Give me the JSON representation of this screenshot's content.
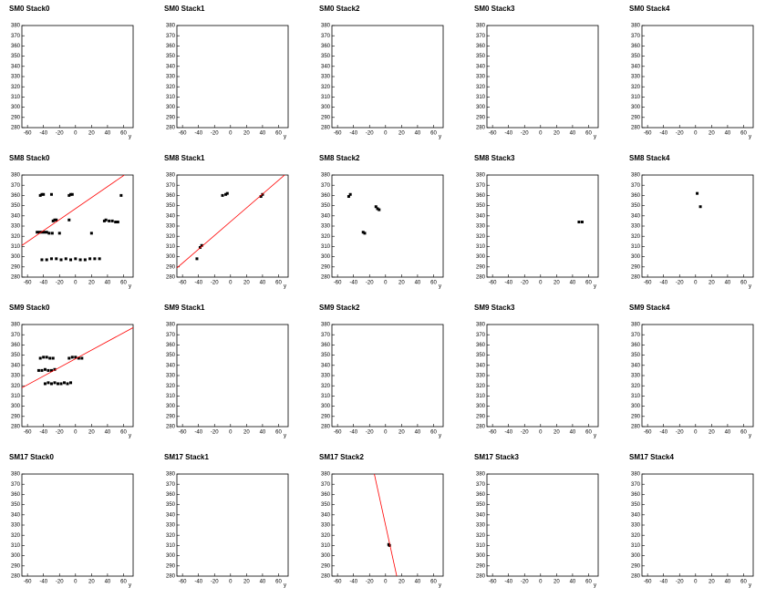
{
  "chart_data": [
    {
      "type": "scatter",
      "title": "SM0 Stack0",
      "xlabel": "y",
      "x": [],
      "y": [],
      "color": "#000000",
      "xlim": [
        -67,
        72
      ],
      "ylim": [
        280,
        380
      ],
      "xticks": [
        -60,
        -40,
        -20,
        0,
        20,
        40,
        60
      ],
      "yticks": [
        280,
        290,
        300,
        310,
        320,
        330,
        340,
        350,
        360,
        370,
        380
      ]
    },
    {
      "type": "scatter",
      "title": "SM0 Stack1",
      "xlabel": "y",
      "x": [],
      "y": [],
      "color": "#000000",
      "xlim": [
        -67,
        72
      ],
      "ylim": [
        280,
        380
      ],
      "xticks": [
        -60,
        -40,
        -20,
        0,
        20,
        40,
        60
      ],
      "yticks": [
        280,
        290,
        300,
        310,
        320,
        330,
        340,
        350,
        360,
        370,
        380
      ]
    },
    {
      "type": "scatter",
      "title": "SM0 Stack2",
      "xlabel": "y",
      "x": [],
      "y": [],
      "color": "#000000",
      "xlim": [
        -67,
        72
      ],
      "ylim": [
        280,
        380
      ],
      "xticks": [
        -60,
        -40,
        -20,
        0,
        20,
        40,
        60
      ],
      "yticks": [
        280,
        290,
        300,
        310,
        320,
        330,
        340,
        350,
        360,
        370,
        380
      ]
    },
    {
      "type": "scatter",
      "title": "SM0 Stack3",
      "xlabel": "y",
      "x": [],
      "y": [],
      "color": "#000000",
      "xlim": [
        -67,
        72
      ],
      "ylim": [
        280,
        380
      ],
      "xticks": [
        -60,
        -40,
        -20,
        0,
        20,
        40,
        60
      ],
      "yticks": [
        280,
        290,
        300,
        310,
        320,
        330,
        340,
        350,
        360,
        370,
        380
      ]
    },
    {
      "type": "scatter",
      "title": "SM0 Stack4",
      "xlabel": "y",
      "x": [],
      "y": [],
      "color": "#000000",
      "xlim": [
        -67,
        72
      ],
      "ylim": [
        280,
        380
      ],
      "xticks": [
        -60,
        -40,
        -20,
        0,
        20,
        40,
        60
      ],
      "yticks": [
        280,
        290,
        300,
        310,
        320,
        330,
        340,
        350,
        360,
        370,
        380
      ]
    },
    {
      "type": "scatter",
      "title": "SM8 Stack0",
      "xlabel": "y",
      "x": [
        -44,
        -42,
        -40,
        -30,
        -8,
        -6,
        -4,
        57,
        -28,
        -26,
        -24,
        -8,
        36,
        38,
        42,
        46,
        50,
        53,
        -48,
        -45,
        -42,
        -39,
        -36,
        -33,
        -29,
        -20,
        20,
        -42,
        -36,
        -30,
        -24,
        -18,
        -12,
        -6,
        0,
        6,
        12,
        18,
        24,
        30
      ],
      "y": [
        360,
        361,
        361,
        361,
        360,
        361,
        361,
        360,
        335,
        336,
        336,
        336,
        335,
        336,
        335,
        335,
        334,
        334,
        324,
        324,
        324,
        324,
        324,
        323,
        323,
        323,
        323,
        297,
        297,
        298,
        298,
        297,
        298,
        297,
        298,
        297,
        297,
        298,
        298,
        298
      ],
      "color": "#000000",
      "fit": {
        "x": [
          -67,
          61
        ],
        "y": [
          311,
          380
        ],
        "color": "#ff0000"
      },
      "xlim": [
        -67,
        72
      ],
      "ylim": [
        280,
        380
      ],
      "xticks": [
        -60,
        -40,
        -20,
        0,
        20,
        40,
        60
      ],
      "yticks": [
        280,
        290,
        300,
        310,
        320,
        330,
        340,
        350,
        360,
        370,
        380
      ]
    },
    {
      "type": "scatter",
      "title": "SM8 Stack1",
      "xlabel": "y",
      "x": [
        -42,
        -38,
        -36,
        -10,
        -6,
        -4,
        38,
        40
      ],
      "y": [
        298,
        309,
        311,
        360,
        361,
        362,
        359,
        361
      ],
      "color": "#000000",
      "fit": {
        "x": [
          -67,
          72
        ],
        "y": [
          289,
          383
        ],
        "color": "#ff0000"
      },
      "xlim": [
        -67,
        72
      ],
      "ylim": [
        280,
        380
      ],
      "xticks": [
        -60,
        -40,
        -20,
        0,
        20,
        40,
        60
      ],
      "yticks": [
        280,
        290,
        300,
        310,
        320,
        330,
        340,
        350,
        360,
        370,
        380
      ]
    },
    {
      "type": "scatter",
      "title": "SM8 Stack2",
      "xlabel": "y",
      "x": [
        -46,
        -44,
        -12,
        -10,
        -8,
        -28,
        -26
      ],
      "y": [
        359,
        361,
        349,
        347,
        346,
        324,
        323
      ],
      "color": "#000000",
      "xlim": [
        -67,
        72
      ],
      "ylim": [
        280,
        380
      ],
      "xticks": [
        -60,
        -40,
        -20,
        0,
        20,
        40,
        60
      ],
      "yticks": [
        280,
        290,
        300,
        310,
        320,
        330,
        340,
        350,
        360,
        370,
        380
      ]
    },
    {
      "type": "scatter",
      "title": "SM8 Stack3",
      "xlabel": "y",
      "x": [
        48,
        52
      ],
      "y": [
        334,
        334
      ],
      "color": "#000000",
      "xlim": [
        -67,
        72
      ],
      "ylim": [
        280,
        380
      ],
      "xticks": [
        -60,
        -40,
        -20,
        0,
        20,
        40,
        60
      ],
      "yticks": [
        280,
        290,
        300,
        310,
        320,
        330,
        340,
        350,
        360,
        370,
        380
      ]
    },
    {
      "type": "scatter",
      "title": "SM8 Stack4",
      "xlabel": "y",
      "x": [
        2,
        6
      ],
      "y": [
        362,
        349
      ],
      "color": "#000000",
      "xlim": [
        -67,
        72
      ],
      "ylim": [
        280,
        380
      ],
      "xticks": [
        -60,
        -40,
        -20,
        0,
        20,
        40,
        60
      ],
      "yticks": [
        280,
        290,
        300,
        310,
        320,
        330,
        340,
        350,
        360,
        370,
        380
      ]
    },
    {
      "type": "scatter",
      "title": "SM9 Stack0",
      "xlabel": "y",
      "x": [
        -44,
        -40,
        -36,
        -32,
        -28,
        -8,
        -4,
        0,
        4,
        8,
        -46,
        -42,
        -38,
        -34,
        -30,
        -26,
        -38,
        -34,
        -30,
        -26,
        -22,
        -18,
        -14,
        -10,
        -6
      ],
      "y": [
        347,
        348,
        348,
        347,
        347,
        347,
        348,
        348,
        347,
        347,
        335,
        335,
        336,
        335,
        335,
        336,
        322,
        323,
        322,
        323,
        322,
        322,
        323,
        322,
        323
      ],
      "color": "#000000",
      "fit": {
        "x": [
          -67,
          72
        ],
        "y": [
          318,
          377
        ],
        "color": "#ff0000"
      },
      "xlim": [
        -67,
        72
      ],
      "ylim": [
        280,
        380
      ],
      "xticks": [
        -60,
        -40,
        -20,
        0,
        20,
        40,
        60
      ],
      "yticks": [
        280,
        290,
        300,
        310,
        320,
        330,
        340,
        350,
        360,
        370,
        380
      ]
    },
    {
      "type": "scatter",
      "title": "SM9 Stack1",
      "xlabel": "y",
      "x": [],
      "y": [],
      "color": "#000000",
      "xlim": [
        -67,
        72
      ],
      "ylim": [
        280,
        380
      ],
      "xticks": [
        -60,
        -40,
        -20,
        0,
        20,
        40,
        60
      ],
      "yticks": [
        280,
        290,
        300,
        310,
        320,
        330,
        340,
        350,
        360,
        370,
        380
      ]
    },
    {
      "type": "scatter",
      "title": "SM9 Stack2",
      "xlabel": "y",
      "x": [],
      "y": [],
      "color": "#000000",
      "xlim": [
        -67,
        72
      ],
      "ylim": [
        280,
        380
      ],
      "xticks": [
        -60,
        -40,
        -20,
        0,
        20,
        40,
        60
      ],
      "yticks": [
        280,
        290,
        300,
        310,
        320,
        330,
        340,
        350,
        360,
        370,
        380
      ]
    },
    {
      "type": "scatter",
      "title": "SM9 Stack3",
      "xlabel": "y",
      "x": [],
      "y": [],
      "color": "#000000",
      "xlim": [
        -67,
        72
      ],
      "ylim": [
        280,
        380
      ],
      "xticks": [
        -60,
        -40,
        -20,
        0,
        20,
        40,
        60
      ],
      "yticks": [
        280,
        290,
        300,
        310,
        320,
        330,
        340,
        350,
        360,
        370,
        380
      ]
    },
    {
      "type": "scatter",
      "title": "SM9 Stack4",
      "xlabel": "y",
      "x": [],
      "y": [],
      "color": "#000000",
      "xlim": [
        -67,
        72
      ],
      "ylim": [
        280,
        380
      ],
      "xticks": [
        -60,
        -40,
        -20,
        0,
        20,
        40,
        60
      ],
      "yticks": [
        280,
        290,
        300,
        310,
        320,
        330,
        340,
        350,
        360,
        370,
        380
      ]
    },
    {
      "type": "scatter",
      "title": "SM17 Stack0",
      "xlabel": "y",
      "x": [],
      "y": [],
      "color": "#000000",
      "xlim": [
        -67,
        72
      ],
      "ylim": [
        280,
        380
      ],
      "xticks": [
        -60,
        -40,
        -20,
        0,
        20,
        40,
        60
      ],
      "yticks": [
        280,
        290,
        300,
        310,
        320,
        330,
        340,
        350,
        360,
        370,
        380
      ]
    },
    {
      "type": "scatter",
      "title": "SM17 Stack1",
      "xlabel": "y",
      "x": [],
      "y": [],
      "color": "#000000",
      "xlim": [
        -67,
        72
      ],
      "ylim": [
        280,
        380
      ],
      "xticks": [
        -60,
        -40,
        -20,
        0,
        20,
        40,
        60
      ],
      "yticks": [
        280,
        290,
        300,
        310,
        320,
        330,
        340,
        350,
        360,
        370,
        380
      ]
    },
    {
      "type": "scatter",
      "title": "SM17 Stack2",
      "xlabel": "y",
      "x": [
        4,
        5
      ],
      "y": [
        311,
        310
      ],
      "color": "#000000",
      "fit": {
        "x": [
          -14,
          14
        ],
        "y": [
          380,
          280
        ],
        "color": "#ff0000"
      },
      "xlim": [
        -67,
        72
      ],
      "ylim": [
        280,
        380
      ],
      "xticks": [
        -60,
        -40,
        -20,
        0,
        20,
        40,
        60
      ],
      "yticks": [
        280,
        290,
        300,
        310,
        320,
        330,
        340,
        350,
        360,
        370,
        380
      ]
    },
    {
      "type": "scatter",
      "title": "SM17 Stack3",
      "xlabel": "y",
      "x": [],
      "y": [],
      "color": "#000000",
      "xlim": [
        -67,
        72
      ],
      "ylim": [
        280,
        380
      ],
      "xticks": [
        -60,
        -40,
        -20,
        0,
        20,
        40,
        60
      ],
      "yticks": [
        280,
        290,
        300,
        310,
        320,
        330,
        340,
        350,
        360,
        370,
        380
      ]
    },
    {
      "type": "scatter",
      "title": "SM17 Stack4",
      "xlabel": "y",
      "x": [],
      "y": [],
      "color": "#000000",
      "xlim": [
        -67,
        72
      ],
      "ylim": [
        280,
        380
      ],
      "xticks": [
        -60,
        -40,
        -20,
        0,
        20,
        40,
        60
      ],
      "yticks": [
        280,
        290,
        300,
        310,
        320,
        330,
        340,
        350,
        360,
        370,
        380
      ]
    }
  ]
}
